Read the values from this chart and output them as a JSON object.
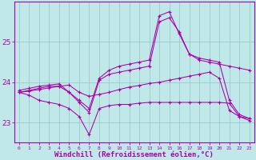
{
  "background_color": "#c0e8e8",
  "grid_color": "#98cccc",
  "line_color": "#aa00aa",
  "marker": "+",
  "xlabel": "Windchill (Refroidissement éolien,°C)",
  "xlabel_fontsize": 6.5,
  "ylabel_ticks": [
    23,
    24,
    25
  ],
  "xlim": [
    -0.5,
    23.5
  ],
  "ylim": [
    22.5,
    26.0
  ],
  "x_ticks": [
    0,
    1,
    2,
    3,
    4,
    5,
    6,
    7,
    8,
    9,
    10,
    11,
    12,
    13,
    14,
    15,
    16,
    17,
    18,
    19,
    20,
    21,
    22,
    23
  ],
  "series": [
    {
      "x": [
        0,
        1,
        2,
        3,
        4,
        5,
        6,
        7,
        8,
        9,
        10,
        11,
        12,
        13,
        14,
        15,
        16,
        17,
        18,
        19,
        20,
        21,
        22,
        23
      ],
      "y": [
        23.8,
        23.85,
        23.9,
        23.93,
        23.96,
        23.75,
        23.55,
        23.35,
        24.1,
        24.3,
        24.4,
        24.45,
        24.5,
        24.55,
        25.65,
        25.75,
        25.2,
        24.7,
        24.6,
        24.55,
        24.5,
        23.55,
        23.2,
        23.1
      ]
    },
    {
      "x": [
        0,
        1,
        2,
        3,
        4,
        5,
        6,
        7,
        8,
        9,
        10,
        11,
        12,
        13,
        14,
        15,
        16,
        17,
        18,
        19,
        20,
        21,
        22,
        23
      ],
      "y": [
        23.75,
        23.8,
        23.85,
        23.9,
        23.9,
        23.75,
        23.5,
        23.25,
        24.05,
        24.2,
        24.25,
        24.3,
        24.35,
        24.4,
        25.5,
        25.6,
        25.25,
        24.7,
        24.55,
        24.5,
        24.45,
        24.4,
        24.35,
        24.3
      ]
    },
    {
      "x": [
        0,
        1,
        2,
        3,
        4,
        5,
        6,
        7,
        8,
        9,
        10,
        11,
        12,
        13,
        14,
        15,
        16,
        17,
        18,
        19,
        20,
        21,
        22,
        23
      ],
      "y": [
        23.75,
        23.78,
        23.82,
        23.86,
        23.9,
        23.93,
        23.75,
        23.65,
        23.7,
        23.75,
        23.82,
        23.88,
        23.92,
        23.97,
        24.0,
        24.05,
        24.1,
        24.15,
        24.2,
        24.25,
        24.1,
        23.3,
        23.15,
        23.1
      ]
    },
    {
      "x": [
        0,
        1,
        2,
        3,
        4,
        5,
        6,
        7,
        8,
        9,
        10,
        11,
        12,
        13,
        14,
        15,
        16,
        17,
        18,
        19,
        20,
        21,
        22,
        23
      ],
      "y": [
        23.75,
        23.68,
        23.55,
        23.5,
        23.45,
        23.35,
        23.15,
        22.7,
        23.35,
        23.42,
        23.45,
        23.45,
        23.48,
        23.5,
        23.5,
        23.5,
        23.5,
        23.5,
        23.5,
        23.5,
        23.5,
        23.48,
        23.15,
        23.05
      ]
    }
  ]
}
